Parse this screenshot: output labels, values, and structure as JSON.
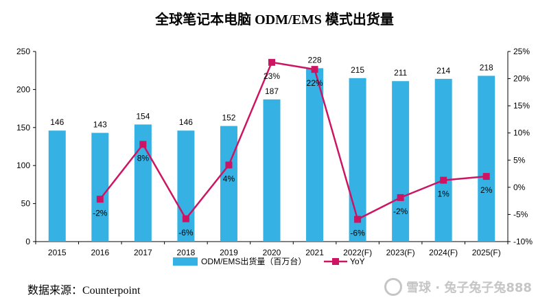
{
  "chart_data": {
    "type": "bar+line",
    "title": "全球笔记本电脑 ODM/EMS 模式出货量",
    "categories": [
      "2015",
      "2016",
      "2017",
      "2018",
      "2019",
      "2020",
      "2021",
      "2022(F)",
      "2023(F)",
      "2024(F)",
      "2025(F)"
    ],
    "series": [
      {
        "name": "ODM/EMS出货量（百万台）",
        "type": "bar",
        "axis": "left",
        "color": "#35B2E3",
        "values": [
          146,
          143,
          154,
          146,
          152,
          187,
          228,
          215,
          211,
          214,
          218
        ]
      },
      {
        "name": "YoY",
        "type": "line",
        "axis": "right",
        "color": "#CC1462",
        "values": [
          null,
          -2.2,
          7.9,
          -5.8,
          4.1,
          23.0,
          21.7,
          -5.9,
          -1.9,
          1.3,
          2.0
        ],
        "labels": [
          "",
          "-2%",
          "8%",
          "-6%",
          "4%",
          "23%",
          "22%",
          "-6%",
          "-2%",
          "1%",
          "2%"
        ]
      }
    ],
    "y_left": {
      "min": 0,
      "max": 250,
      "ticks": [
        "0",
        "50",
        "100",
        "150",
        "200",
        "250"
      ]
    },
    "y_right": {
      "min": -10,
      "max": 25,
      "ticks": [
        "-10%",
        "-5%",
        "0%",
        "5%",
        "10%",
        "15%",
        "20%",
        "25%"
      ]
    },
    "legend_position": "bottom",
    "grid": false
  },
  "source": "数据来源：Counterpoint",
  "watermark": {
    "text": "雪球 · 兔子兔子兔888",
    "icon": "snowball-logo-icon"
  }
}
